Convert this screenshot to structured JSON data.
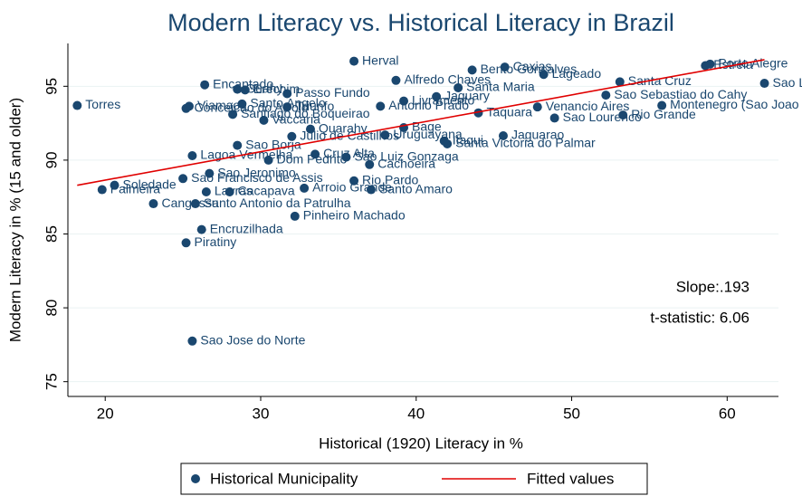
{
  "chart_data": {
    "type": "scatter",
    "title": "Modern Literacy vs. Historical Literacy in Brazil",
    "xlabel": "Historical (1920) Literacy in %",
    "ylabel": "Modern Literacy in % (15 and older)",
    "xlim": [
      17.6,
      63.3
    ],
    "ylim": [
      74,
      97.9
    ],
    "xticks": [
      20,
      30,
      40,
      50,
      60
    ],
    "yticks": [
      75,
      80,
      85,
      90,
      95
    ],
    "grid": true,
    "annotations": [
      "Slope:.193",
      "t-statistic: 6.06"
    ],
    "series": [
      {
        "name": "Historical Municipality",
        "color": "#1a476f",
        "labels": [
          "Torres",
          "Palmeira",
          "Soledade",
          "Cangussu",
          "Encruzilhada",
          "Piratiny",
          "Sao Jose do Norte",
          "Santo Antonio da Patrulha",
          "Lavras",
          "Cacapava",
          "Arroio Grande",
          "Pinheiro Machado",
          "Santo Amaro",
          "Rio Pardo",
          "Sao Francisco de Assis",
          "Lagoa Vermelha",
          "Sao Borja",
          "Encantado",
          "Guahy",
          "Erechim",
          "Viamao",
          "Conceicao do Arroio",
          "Santo Angelo",
          "Santiago do Boqueirao",
          "Vaccaria",
          "Passo Fundo",
          "Herval",
          "Alfredo Chaves",
          "Bento Goncalves",
          "Caxias",
          "Lageado",
          "Santa Maria",
          "Santa Cruz",
          "Sao Sebastiao do Cahy",
          "Montenegro (Sao Joao do Montenegro)",
          "Rio Grande",
          "Sao Lourenco",
          "Taquara",
          "Estrela",
          "Porto Alegre",
          "Sao Leopoldo",
          "Jaguarao",
          "Santa Victoria do Palmar",
          "Bage",
          "Itaqui",
          "Julio de Castilhos",
          "Quarahy",
          "Livramento",
          "Antonio Prado",
          "Jaguary",
          "Venancio Aires",
          "Cruz Alta",
          "Sao Luiz Gonzaga",
          "Cachoeira",
          "Sao Jeronimo",
          "Dom Pedrito",
          "Uruguayana",
          "Triunfo"
        ],
        "x": [
          18.2,
          19.8,
          20.6,
          23.1,
          26.2,
          25.2,
          25.6,
          25.8,
          26.5,
          28.0,
          32.8,
          32.2,
          37.1,
          36.0,
          25.0,
          25.6,
          28.5,
          26.4,
          28.5,
          29.0,
          25.4,
          25.2,
          28.8,
          28.2,
          30.2,
          31.7,
          36.0,
          38.7,
          43.6,
          45.7,
          48.2,
          42.7,
          53.1,
          52.2,
          55.8,
          53.3,
          48.9,
          44.0,
          58.6,
          58.9,
          62.4,
          45.6,
          42.0,
          39.2,
          41.8,
          32.0,
          33.2,
          39.2,
          37.7,
          41.3,
          47.8,
          33.5,
          35.5,
          37.0,
          26.7,
          30.5,
          38.0,
          31.7
        ],
        "values": [
          93.7,
          88.0,
          88.3,
          87.05,
          85.3,
          84.4,
          77.75,
          87.05,
          87.85,
          87.85,
          88.1,
          86.2,
          88.0,
          88.6,
          88.75,
          90.3,
          91.0,
          95.1,
          94.8,
          94.75,
          93.65,
          93.5,
          93.8,
          93.1,
          92.7,
          94.5,
          96.7,
          95.4,
          96.1,
          96.3,
          95.8,
          94.9,
          95.3,
          94.4,
          93.7,
          93.05,
          92.85,
          93.2,
          96.4,
          96.5,
          95.2,
          91.65,
          91.1,
          92.2,
          91.3,
          91.6,
          92.1,
          94.0,
          93.65,
          94.3,
          93.6,
          90.4,
          90.2,
          89.7,
          89.1,
          90.0,
          91.7,
          93.6
        ]
      },
      {
        "name": "Fitted values",
        "color": "#e00000",
        "type": "line",
        "x": [
          18.2,
          62.4
        ],
        "values": [
          88.3,
          96.8
        ]
      }
    ]
  }
}
